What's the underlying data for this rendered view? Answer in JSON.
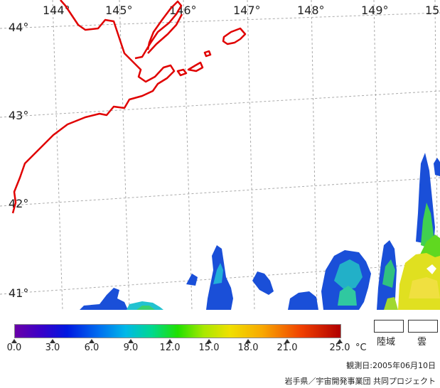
{
  "map": {
    "longitude_labels": [
      "144°",
      "145°",
      "146°",
      "147°",
      "148°",
      "149°",
      "15"
    ],
    "latitude_labels": [
      "44°",
      "43°",
      "42°",
      "41°"
    ]
  },
  "legend": {
    "ticks": [
      "0.0",
      "3.0",
      "6.0",
      "9.0",
      "12.0",
      "15.0",
      "18.0",
      "21.0",
      "25.0"
    ],
    "unit": "°C",
    "land_label": "陸域",
    "cloud_label": "雲",
    "land_box_color": "#ffffff",
    "cloud_box_color": "#ffffff"
  },
  "observation_date": "観測日:2005年06月10日",
  "credit": "岩手県／宇宙開発事業団 共同プロジェクト",
  "colors": {
    "coastline": "#e00000",
    "grid": "#aaaaaa"
  }
}
